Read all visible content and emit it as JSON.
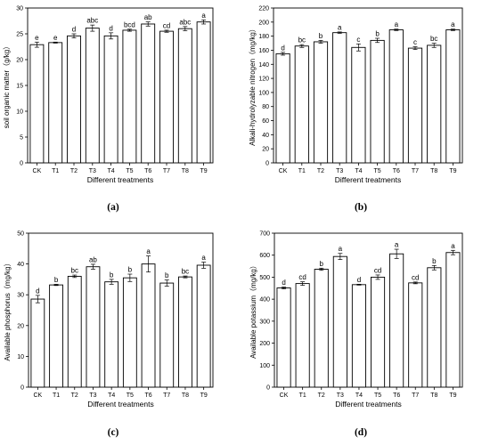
{
  "chart_data": [
    {
      "type": "bar",
      "panel_label": "(a)",
      "categories": [
        "CK",
        "T1",
        "T2",
        "T3",
        "T4",
        "T5",
        "T6",
        "T7",
        "T8",
        "T9"
      ],
      "values": [
        22.9,
        23.3,
        24.6,
        26.1,
        24.6,
        25.7,
        26.9,
        25.5,
        26.0,
        27.3
      ],
      "errors": [
        0.5,
        0.1,
        0.4,
        0.6,
        0.6,
        0.2,
        0.4,
        0.2,
        0.4,
        0.4
      ],
      "letters": [
        "e",
        "e",
        "d",
        "abc",
        "d",
        "bcd",
        "ab",
        "cd",
        "abc",
        "a"
      ],
      "xlabel": "Different treatments",
      "ylabel": "soil organic matter（g/kg）",
      "ylim": [
        0,
        30
      ],
      "yticks": [
        0,
        5,
        10,
        15,
        20,
        25,
        30
      ],
      "grid": false,
      "bar_color": "#ffffff"
    },
    {
      "type": "bar",
      "panel_label": "(b)",
      "categories": [
        "CK",
        "T1",
        "T2",
        "T3",
        "T4",
        "T5",
        "T6",
        "T7",
        "T8",
        "T9"
      ],
      "values": [
        155,
        166,
        172,
        185,
        164,
        174,
        189,
        163,
        167,
        189
      ],
      "errors": [
        2,
        2,
        2,
        1,
        5,
        3,
        1,
        2,
        3,
        1
      ],
      "letters": [
        "d",
        "bc",
        "b",
        "a",
        "c",
        "b",
        "a",
        "c",
        "bc",
        "a"
      ],
      "xlabel": "Different treatments",
      "ylabel": "Alkali-hydrolyzable nitrogen（mg/kg）",
      "ylim": [
        0,
        220
      ],
      "yticks": [
        0,
        20,
        40,
        60,
        80,
        100,
        120,
        140,
        160,
        180,
        200,
        220
      ],
      "grid": false,
      "bar_color": "#ffffff"
    },
    {
      "type": "bar",
      "panel_label": "(c)",
      "categories": [
        "CK",
        "T1",
        "T2",
        "T3",
        "T4",
        "T5",
        "T6",
        "T7",
        "T8",
        "T9"
      ],
      "values": [
        28.6,
        33.2,
        36.0,
        39.1,
        34.2,
        35.5,
        40.0,
        33.8,
        35.8,
        39.6
      ],
      "errors": [
        1.2,
        0.2,
        0.4,
        0.8,
        0.8,
        1.2,
        2.6,
        1.0,
        0.3,
        1.0
      ],
      "letters": [
        "d",
        "b",
        "bc",
        "ab",
        "b",
        "b",
        "a",
        "b",
        "bc",
        "a"
      ],
      "xlabel": "Different treatments",
      "ylabel": "Available phosphorus（mg/kg）",
      "ylim": [
        0,
        50
      ],
      "yticks": [
        0,
        10,
        20,
        30,
        40,
        50
      ],
      "grid": false,
      "bar_color": "#ffffff"
    },
    {
      "type": "bar",
      "panel_label": "(d)",
      "categories": [
        "CK",
        "T1",
        "T2",
        "T3",
        "T4",
        "T5",
        "T6",
        "T7",
        "T8",
        "T9"
      ],
      "values": [
        451,
        471,
        536,
        594,
        466,
        500,
        606,
        474,
        543,
        612
      ],
      "errors": [
        4,
        8,
        5,
        14,
        2,
        10,
        21,
        4,
        10,
        10
      ],
      "letters": [
        "d",
        "cd",
        "b",
        "a",
        "d",
        "cd",
        "a",
        "cd",
        "b",
        "a"
      ],
      "xlabel": "Different treatments",
      "ylabel": "Available potassium（mg/kg）",
      "ylim": [
        0,
        700
      ],
      "yticks": [
        0,
        100,
        200,
        300,
        400,
        500,
        600,
        700
      ],
      "grid": false,
      "bar_color": "#ffffff"
    }
  ]
}
